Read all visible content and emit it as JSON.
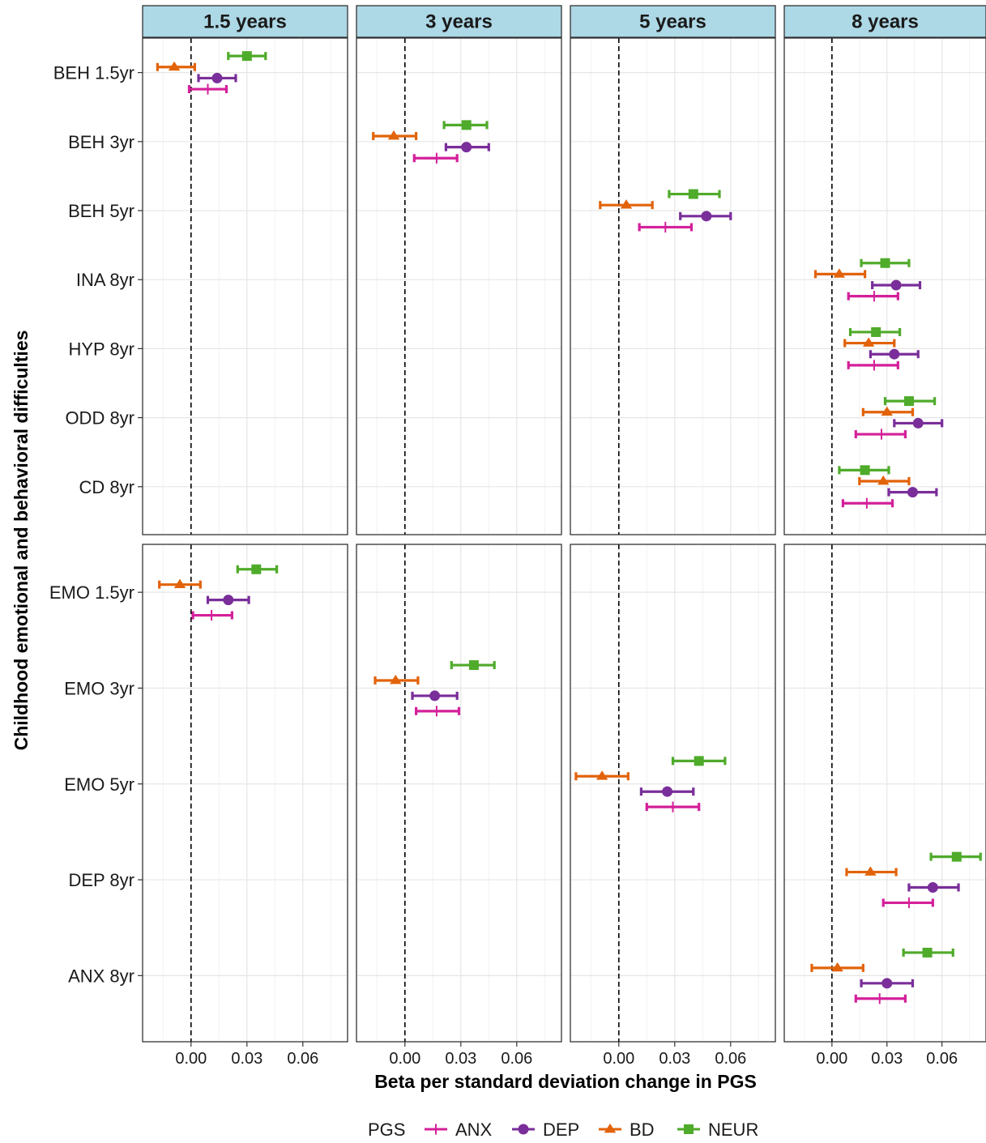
{
  "chart_data": {
    "type": "forest",
    "xlabel": "Beta per standard deviation change in PGS",
    "ylabel": "Childhood emotional and behavioral difficulties",
    "facets": [
      "1.5 years",
      "3 years",
      "5 years",
      "8 years"
    ],
    "x_ticks": [
      0.0,
      0.03,
      0.06
    ],
    "x_tick_labels": [
      "0.00",
      "0.03",
      "0.06"
    ],
    "xlim": [
      -0.026,
      0.084
    ],
    "reference_line": 0,
    "grid": true,
    "legend": {
      "title": "PGS",
      "position": "bottom",
      "entries": [
        "ANX",
        "DEP",
        "BD",
        "NEUR"
      ]
    },
    "series": [
      {
        "name": "ANX",
        "color": "#d4209a",
        "shape": "plus"
      },
      {
        "name": "DEP",
        "color": "#7a2e9a",
        "shape": "circle"
      },
      {
        "name": "BD",
        "color": "#e2630a",
        "shape": "triangle"
      },
      {
        "name": "NEUR",
        "color": "#4fab2a",
        "shape": "square"
      }
    ],
    "rows": [
      {
        "label": "BEH 1.5yr",
        "panel": 0,
        "facet": "1.5 years",
        "estimates": {
          "NEUR": [
            0.03,
            0.02,
            0.04
          ],
          "BD": [
            -0.009,
            -0.018,
            0.002
          ],
          "DEP": [
            0.014,
            0.004,
            0.024
          ],
          "ANX": [
            0.009,
            -0.001,
            0.019
          ]
        }
      },
      {
        "label": "BEH 3yr",
        "panel": 0,
        "facet": "3 years",
        "estimates": {
          "NEUR": [
            0.033,
            0.021,
            0.044
          ],
          "BD": [
            -0.006,
            -0.017,
            0.006
          ],
          "DEP": [
            0.033,
            0.022,
            0.045
          ],
          "ANX": [
            0.017,
            0.005,
            0.028
          ]
        }
      },
      {
        "label": "BEH 5yr",
        "panel": 0,
        "facet": "5 years",
        "estimates": {
          "NEUR": [
            0.04,
            0.027,
            0.054
          ],
          "BD": [
            0.004,
            -0.01,
            0.018
          ],
          "DEP": [
            0.047,
            0.033,
            0.06
          ],
          "ANX": [
            0.025,
            0.011,
            0.039
          ]
        }
      },
      {
        "label": "INA 8yr",
        "panel": 0,
        "facet": "8 years",
        "estimates": {
          "NEUR": [
            0.029,
            0.016,
            0.042
          ],
          "BD": [
            0.004,
            -0.009,
            0.018
          ],
          "DEP": [
            0.035,
            0.022,
            0.048
          ],
          "ANX": [
            0.023,
            0.009,
            0.036
          ]
        }
      },
      {
        "label": "HYP 8yr",
        "panel": 0,
        "facet": "8 years",
        "estimates": {
          "NEUR": [
            0.024,
            0.01,
            0.037
          ],
          "BD": [
            0.02,
            0.007,
            0.034
          ],
          "DEP": [
            0.034,
            0.021,
            0.047
          ],
          "ANX": [
            0.023,
            0.009,
            0.036
          ]
        }
      },
      {
        "label": "ODD 8yr",
        "panel": 0,
        "facet": "8 years",
        "estimates": {
          "NEUR": [
            0.042,
            0.029,
            0.056
          ],
          "BD": [
            0.03,
            0.017,
            0.044
          ],
          "DEP": [
            0.047,
            0.034,
            0.06
          ],
          "ANX": [
            0.027,
            0.013,
            0.04
          ]
        }
      },
      {
        "label": "CD 8yr",
        "panel": 0,
        "facet": "8 years",
        "estimates": {
          "NEUR": [
            0.018,
            0.004,
            0.031
          ],
          "BD": [
            0.028,
            0.015,
            0.042
          ],
          "DEP": [
            0.044,
            0.031,
            0.057
          ],
          "ANX": [
            0.019,
            0.006,
            0.033
          ]
        }
      },
      {
        "label": "EMO 1.5yr",
        "panel": 1,
        "facet": "1.5 years",
        "estimates": {
          "NEUR": [
            0.035,
            0.025,
            0.046
          ],
          "BD": [
            -0.006,
            -0.017,
            0.005
          ],
          "DEP": [
            0.02,
            0.009,
            0.031
          ],
          "ANX": [
            0.011,
            0.001,
            0.022
          ]
        }
      },
      {
        "label": "EMO 3yr",
        "panel": 1,
        "facet": "3 years",
        "estimates": {
          "NEUR": [
            0.037,
            0.025,
            0.048
          ],
          "BD": [
            -0.005,
            -0.016,
            0.007
          ],
          "DEP": [
            0.016,
            0.004,
            0.028
          ],
          "ANX": [
            0.017,
            0.006,
            0.029
          ]
        }
      },
      {
        "label": "EMO 5yr",
        "panel": 1,
        "facet": "5 years",
        "estimates": {
          "NEUR": [
            0.043,
            0.029,
            0.057
          ],
          "BD": [
            -0.009,
            -0.023,
            0.005
          ],
          "DEP": [
            0.026,
            0.012,
            0.04
          ],
          "ANX": [
            0.029,
            0.015,
            0.043
          ]
        }
      },
      {
        "label": "DEP 8yr",
        "panel": 1,
        "facet": "8 years",
        "estimates": {
          "NEUR": [
            0.068,
            0.054,
            0.081
          ],
          "BD": [
            0.021,
            0.008,
            0.035
          ],
          "DEP": [
            0.055,
            0.042,
            0.069
          ],
          "ANX": [
            0.042,
            0.028,
            0.055
          ]
        }
      },
      {
        "label": "ANX 8yr",
        "panel": 1,
        "facet": "8 years",
        "estimates": {
          "NEUR": [
            0.052,
            0.039,
            0.066
          ],
          "BD": [
            0.003,
            -0.011,
            0.017
          ],
          "DEP": [
            0.03,
            0.016,
            0.044
          ],
          "ANX": [
            0.026,
            0.013,
            0.04
          ]
        }
      }
    ]
  }
}
